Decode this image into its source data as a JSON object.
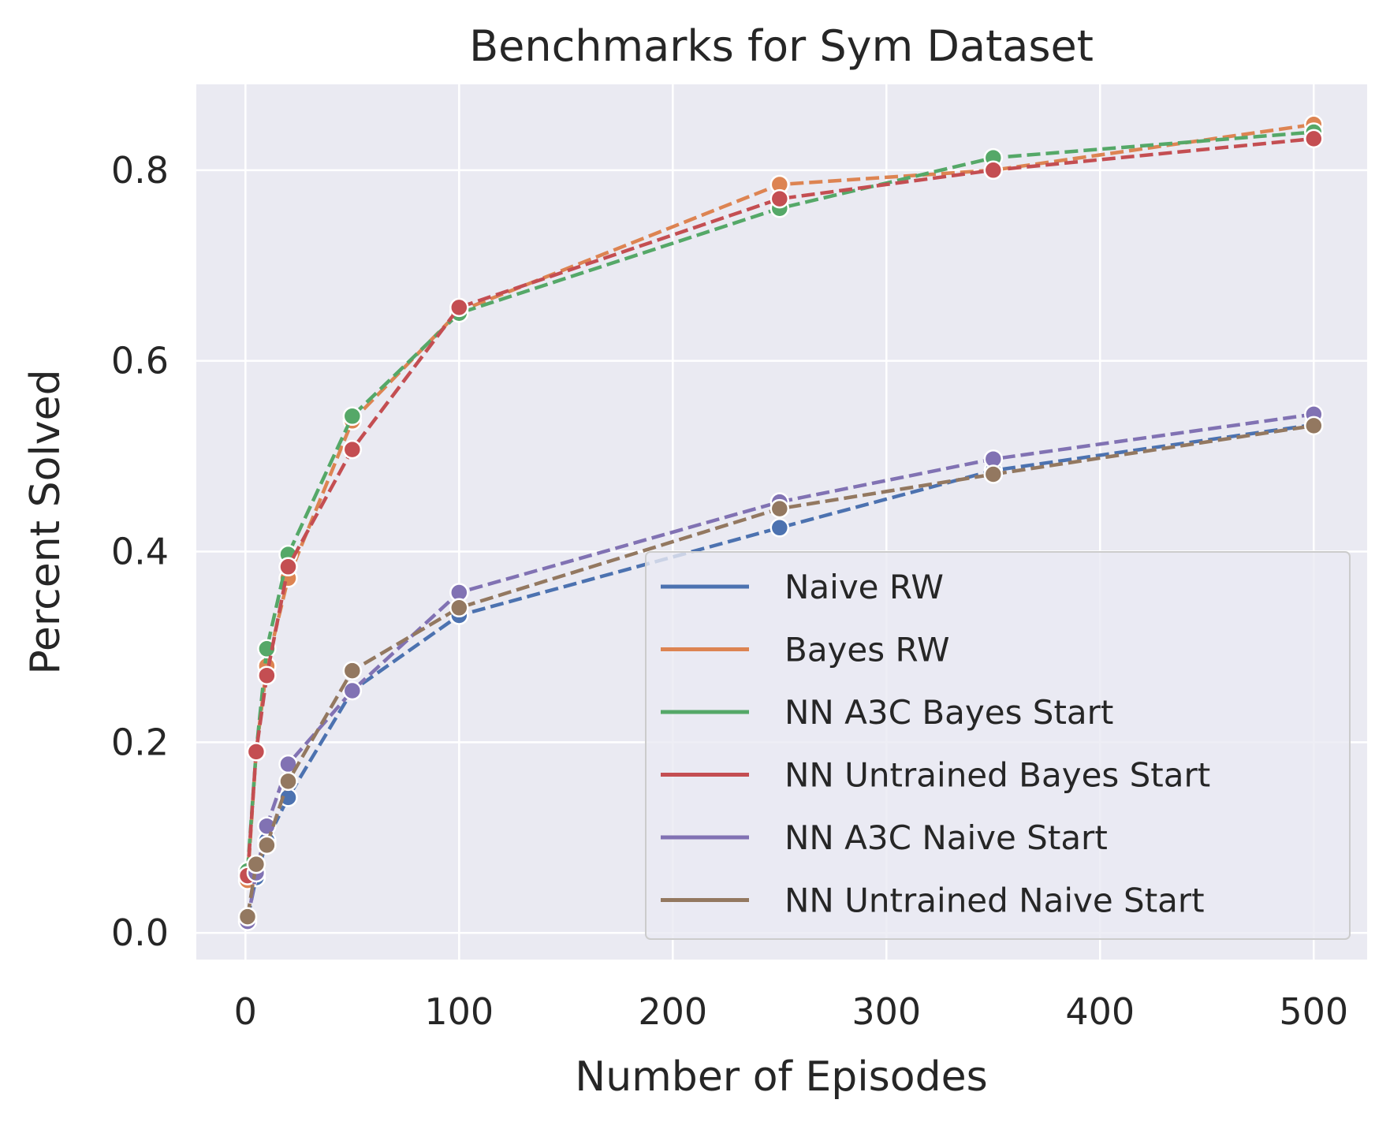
{
  "chart_data": {
    "type": "line",
    "title": "Benchmarks for Sym Dataset",
    "xlabel": "Number of Episodes",
    "ylabel": "Percent Solved",
    "xlim": [
      -23,
      525
    ],
    "ylim": [
      -0.028,
      0.89
    ],
    "xticks": [
      0,
      100,
      200,
      300,
      400,
      500
    ],
    "yticks": [
      0.0,
      0.2,
      0.4,
      0.6,
      0.8
    ],
    "xtick_labels": [
      "0",
      "100",
      "200",
      "300",
      "400",
      "500"
    ],
    "ytick_labels": [
      "0.0",
      "0.2",
      "0.4",
      "0.6",
      "0.8"
    ],
    "grid": true,
    "legend_position": "lower right",
    "x": [
      1,
      5,
      10,
      20,
      50,
      100,
      250,
      350,
      500
    ],
    "series": [
      {
        "name": "Naive RW",
        "color": "#4c72b0",
        "values": [
          0.015,
          0.058,
          0.097,
          0.142,
          0.254,
          0.333,
          0.425,
          0.485,
          0.533
        ]
      },
      {
        "name": "Bayes RW",
        "color": "#dd8452",
        "values": [
          0.055,
          0.19,
          0.28,
          0.372,
          0.537,
          0.652,
          0.785,
          0.8,
          0.848
        ]
      },
      {
        "name": "NN A3C Bayes Start",
        "color": "#55a868",
        "values": [
          0.065,
          0.19,
          0.298,
          0.397,
          0.542,
          0.65,
          0.76,
          0.813,
          0.84
        ]
      },
      {
        "name": "NN Untrained Bayes Start",
        "color": "#c44e52",
        "values": [
          0.06,
          0.19,
          0.27,
          0.384,
          0.507,
          0.656,
          0.77,
          0.8,
          0.833
        ]
      },
      {
        "name": "NN A3C Naive Start",
        "color": "#8172b3",
        "values": [
          0.012,
          0.063,
          0.112,
          0.177,
          0.254,
          0.357,
          0.452,
          0.497,
          0.544
        ]
      },
      {
        "name": "NN Untrained Naive Start",
        "color": "#937860",
        "values": [
          0.017,
          0.072,
          0.092,
          0.159,
          0.275,
          0.341,
          0.445,
          0.481,
          0.532
        ]
      }
    ]
  }
}
